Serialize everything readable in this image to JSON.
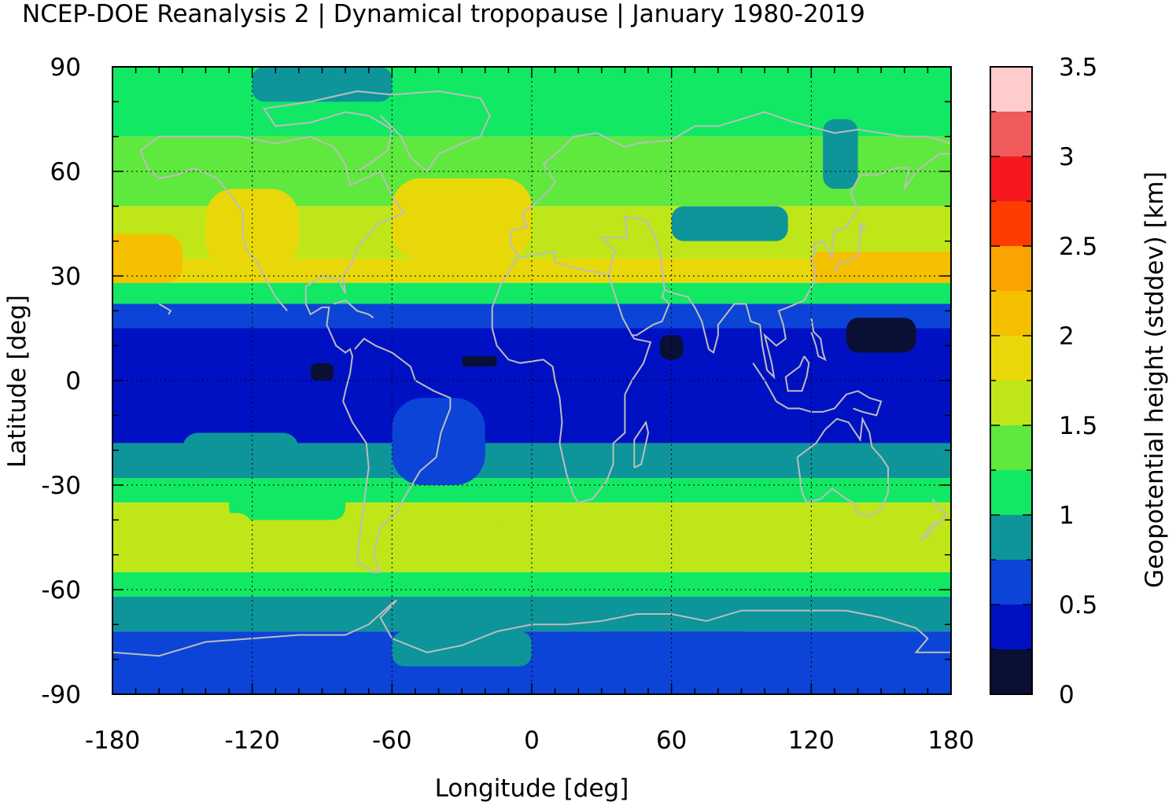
{
  "title": "NCEP-DOE Reanalysis 2 | Dynamical tropopause | January 1980-2019",
  "chart_data": {
    "type": "heatmap",
    "title": "NCEP-DOE Reanalysis 2 | Dynamical tropopause | January 1980-2019",
    "xlabel": "Longitude [deg]",
    "ylabel": "Latitude [deg]",
    "colorbar_label": "Geopotential height (stddev) [km]",
    "xlim": [
      -180,
      180
    ],
    "ylim": [
      -90,
      90
    ],
    "x_ticks": [
      "-180",
      "-120",
      "-60",
      "0",
      "60",
      "120",
      "180"
    ],
    "y_ticks": [
      "90",
      "60",
      "30",
      "0",
      "-30",
      "-60",
      "-90"
    ],
    "colorbar_ticks": [
      "0",
      "0.5",
      "1",
      "1.5",
      "2",
      "2.5",
      "3",
      "3.5"
    ],
    "colorbar_range": [
      0,
      3.5
    ],
    "levels": [
      0,
      0.25,
      0.5,
      0.75,
      1.0,
      1.25,
      1.5,
      1.75,
      2.0,
      2.25,
      2.5,
      2.75,
      3.0,
      3.25,
      3.5
    ],
    "level_colors": [
      "#0a1035",
      "#0011c4",
      "#0b44d6",
      "#0d9599",
      "#12e864",
      "#5fe83e",
      "#bfe619",
      "#e8d80a",
      "#f5c000",
      "#fba300",
      "#ff3c00",
      "#f5181e",
      "#f05a5a",
      "#ffcccc"
    ],
    "grid": true,
    "coastlines": true,
    "lat_bands": [
      {
        "lat": [
          70,
          90
        ],
        "value": 1.1
      },
      {
        "lat": [
          50,
          70
        ],
        "value": 1.3
      },
      {
        "lat": [
          35,
          50
        ],
        "value": 1.6
      },
      {
        "lat": [
          28,
          35
        ],
        "value": 1.9
      },
      {
        "lat": [
          22,
          28
        ],
        "value": 1.2
      },
      {
        "lat": [
          15,
          22
        ],
        "value": 0.6
      },
      {
        "lat": [
          -18,
          15
        ],
        "value": 0.4
      },
      {
        "lat": [
          -28,
          -18
        ],
        "value": 0.8
      },
      {
        "lat": [
          -35,
          -28
        ],
        "value": 1.2
      },
      {
        "lat": [
          -55,
          -35
        ],
        "value": 1.55
      },
      {
        "lat": [
          -62,
          -55
        ],
        "value": 1.2
      },
      {
        "lat": [
          -72,
          -62
        ],
        "value": 0.9
      },
      {
        "lat": [
          -90,
          -72
        ],
        "value": 0.6
      }
    ],
    "features": [
      {
        "lon": [
          -185,
          -150
        ],
        "lat": [
          28,
          42
        ],
        "value": 2.05
      },
      {
        "lon": [
          -60,
          0
        ],
        "lat": [
          35,
          58
        ],
        "value": 1.8
      },
      {
        "lon": [
          -140,
          -100
        ],
        "lat": [
          32,
          55
        ],
        "value": 1.8
      },
      {
        "lon": [
          120,
          185
        ],
        "lat": [
          28,
          37
        ],
        "value": 2.0
      },
      {
        "lon": [
          140,
          185
        ],
        "lat": [
          30,
          36
        ],
        "value": 2.05
      },
      {
        "lon": [
          60,
          110
        ],
        "lat": [
          40,
          50
        ],
        "value": 0.9
      },
      {
        "lon": [
          125,
          140
        ],
        "lat": [
          55,
          75
        ],
        "value": 0.9
      },
      {
        "lon": [
          -120,
          -60
        ],
        "lat": [
          80,
          90
        ],
        "value": 0.9
      },
      {
        "lon": [
          135,
          165
        ],
        "lat": [
          8,
          18
        ],
        "value": 0.1
      },
      {
        "lon": [
          55,
          65
        ],
        "lat": [
          6,
          13
        ],
        "value": 0.1
      },
      {
        "lon": [
          -95,
          -85
        ],
        "lat": [
          0,
          5
        ],
        "value": 0.1
      },
      {
        "lon": [
          -30,
          -15
        ],
        "lat": [
          4,
          7
        ],
        "value": 0.1
      },
      {
        "lon": [
          -60,
          -20
        ],
        "lat": [
          -30,
          -5
        ],
        "value": 0.7
      },
      {
        "lon": [
          -150,
          -100
        ],
        "lat": [
          -28,
          -15
        ],
        "value": 0.9
      },
      {
        "lon": [
          -130,
          -80
        ],
        "lat": [
          -40,
          -30
        ],
        "value": 1.2
      },
      {
        "lon": [
          -180,
          -120
        ],
        "lat": [
          -50,
          -38
        ],
        "value": 1.6
      },
      {
        "lon": [
          -50,
          -30
        ],
        "lat": [
          -45,
          -35
        ],
        "value": 1.6
      },
      {
        "lon": [
          -15,
          180
        ],
        "lat": [
          -50,
          -40
        ],
        "value": 1.6
      },
      {
        "lon": [
          20,
          100
        ],
        "lat": [
          -90,
          -72
        ],
        "value": 0.6
      },
      {
        "lon": [
          -60,
          0
        ],
        "lat": [
          -82,
          -72
        ],
        "value": 0.85
      }
    ]
  }
}
